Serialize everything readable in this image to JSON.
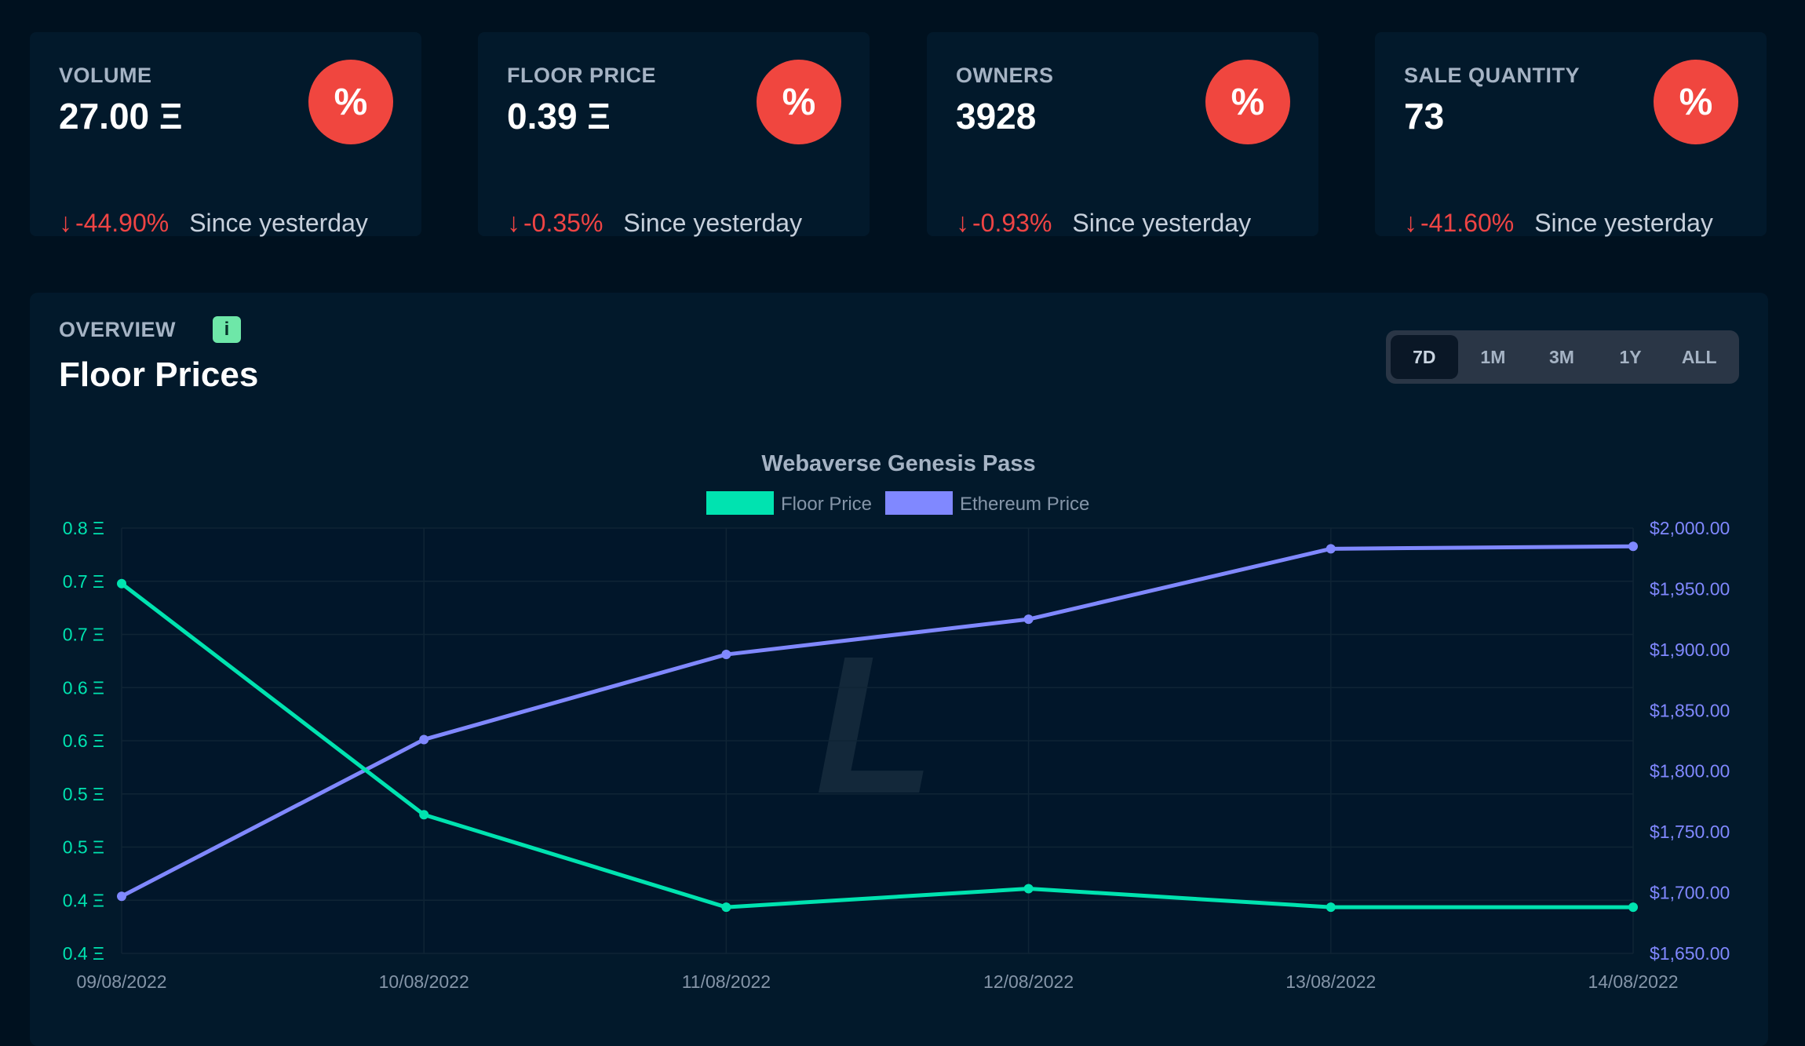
{
  "stats": [
    {
      "title": "VOLUME",
      "value": "27.00 Ξ",
      "icon": "%",
      "arrow": "↓",
      "change": "-44.90%",
      "since": "Since yesterday"
    },
    {
      "title": "FLOOR PRICE",
      "value": "0.39 Ξ",
      "icon": "%",
      "arrow": "↓",
      "change": "-0.35%",
      "since": "Since yesterday"
    },
    {
      "title": "OWNERS",
      "value": "3928",
      "icon": "%",
      "arrow": "↓",
      "change": "-0.93%",
      "since": "Since yesterday"
    },
    {
      "title": "SALE QUANTITY",
      "value": "73",
      "icon": "%",
      "arrow": "↓",
      "change": "-41.60%",
      "since": "Since yesterday"
    }
  ],
  "overview": {
    "label": "OVERVIEW",
    "info_icon": "i",
    "title": "Floor Prices",
    "ranges": [
      "7D",
      "1M",
      "3M",
      "1Y",
      "ALL"
    ],
    "active_range": "7D"
  },
  "watermark": "L",
  "colors": {
    "floor": "#00e3b0",
    "eth": "#8088ff",
    "negative": "#ef4444",
    "badge": "#f0463f"
  },
  "chart_data": {
    "type": "line",
    "title": "Webaverse Genesis Pass",
    "legend_position": "top-center",
    "x": [
      "09/08/2022",
      "10/08/2022",
      "11/08/2022",
      "12/08/2022",
      "13/08/2022",
      "14/08/2022"
    ],
    "series": [
      {
        "name": "Floor Price",
        "axis": "left",
        "values": [
          0.74,
          0.49,
          0.39,
          0.41,
          0.39,
          0.39
        ]
      },
      {
        "name": "Ethereum Price",
        "axis": "right",
        "values": [
          1697,
          1826,
          1896,
          1925,
          1983,
          1985
        ]
      }
    ],
    "y_left": {
      "ylim": [
        0.34,
        0.8
      ],
      "ticks": [
        0.8,
        0.75,
        0.7,
        0.65,
        0.6,
        0.55,
        0.5,
        0.45,
        0.4
      ],
      "tick_labels": [
        "0.8 Ξ",
        "0.7 Ξ",
        "0.7 Ξ",
        "0.6 Ξ",
        "0.6 Ξ",
        "0.5 Ξ",
        "0.5 Ξ",
        "0.4 Ξ",
        "0.4 Ξ"
      ]
    },
    "y_right": {
      "ylim": [
        1650,
        2000
      ],
      "tick_labels": [
        "$2,000.00",
        "$1,950.00",
        "$1,900.00",
        "$1,850.00",
        "$1,800.00",
        "$1,750.00",
        "$1,700.00",
        "$1,650.00"
      ]
    },
    "grid": true
  }
}
